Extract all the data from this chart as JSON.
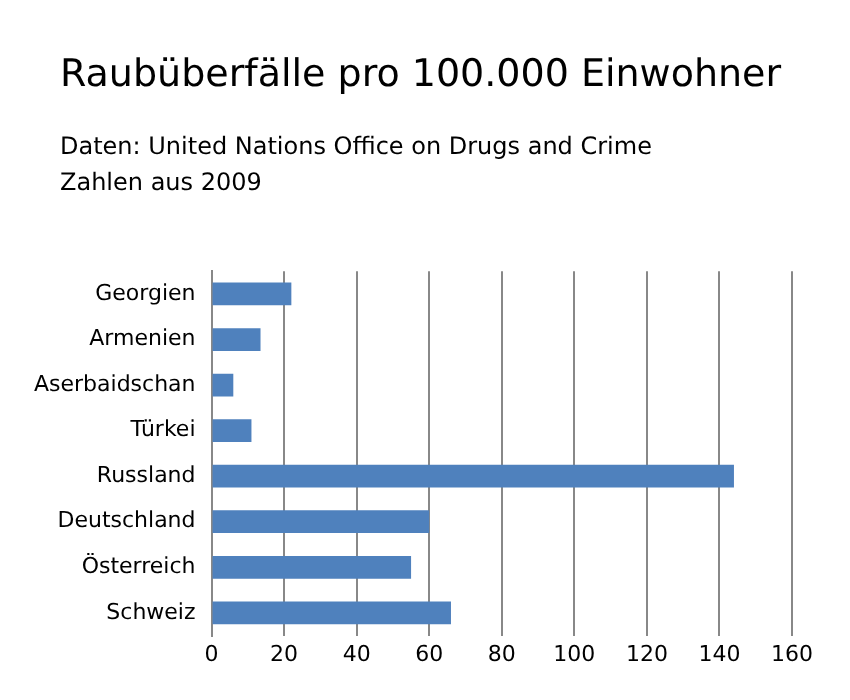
{
  "chart_data": {
    "type": "bar",
    "orientation": "horizontal",
    "title": "Raubüberfälle  pro 100.000 Einwohner",
    "subtitle": "Daten: United Nations  Office on Drugs and Crime",
    "annotations": [
      "Zahlen aus 2009"
    ],
    "categories": [
      "Georgien",
      "Armenien",
      "Aserbaidschan",
      "Türkei",
      "Russland",
      "Deutschland",
      "Österreich",
      "Schweiz"
    ],
    "values": [
      22,
      13.5,
      6,
      11,
      144,
      60,
      55,
      66
    ],
    "color": "#4f81bd",
    "xlim": [
      0,
      160
    ],
    "xticks": [
      0,
      20,
      40,
      60,
      80,
      100,
      120,
      140,
      160
    ],
    "grid": "x",
    "legend": false
  }
}
